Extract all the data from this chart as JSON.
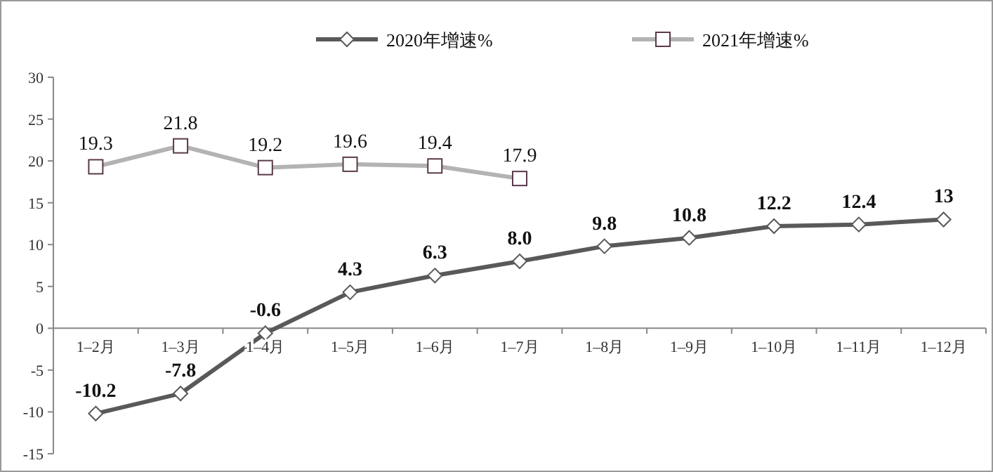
{
  "chart_data": {
    "type": "line",
    "categories": [
      "1–2月",
      "1–3月",
      "1–4月",
      "1–5月",
      "1–6月",
      "1–7月",
      "1–8月",
      "1–9月",
      "1–10月",
      "1–11月",
      "1–12月"
    ],
    "series": [
      {
        "name": "2020年增速%",
        "color": "#595959",
        "marker": "diamond",
        "values": [
          -10.2,
          -7.8,
          -0.6,
          4.3,
          6.3,
          8.0,
          9.8,
          10.8,
          12.2,
          12.4,
          13
        ],
        "value_labels": [
          "-10.2",
          "-7.8",
          "-0.6",
          "4.3",
          "6.3",
          "8.0",
          "9.8",
          "10.8",
          "12.2",
          "12.4",
          "13"
        ]
      },
      {
        "name": "2021年增速%",
        "color": "#b3b3b3",
        "marker": "square",
        "values": [
          19.3,
          21.8,
          19.2,
          19.6,
          19.4,
          17.9,
          null,
          null,
          null,
          null,
          null
        ],
        "value_labels": [
          "19.3",
          "21.8",
          "19.2",
          "19.6",
          "19.4",
          "17.9",
          null,
          null,
          null,
          null,
          null
        ]
      }
    ],
    "ylim": [
      -15,
      30
    ],
    "yticks": [
      -15,
      -10,
      -5,
      0,
      5,
      10,
      15,
      20,
      25,
      30
    ],
    "grid": false,
    "legend": "top"
  }
}
